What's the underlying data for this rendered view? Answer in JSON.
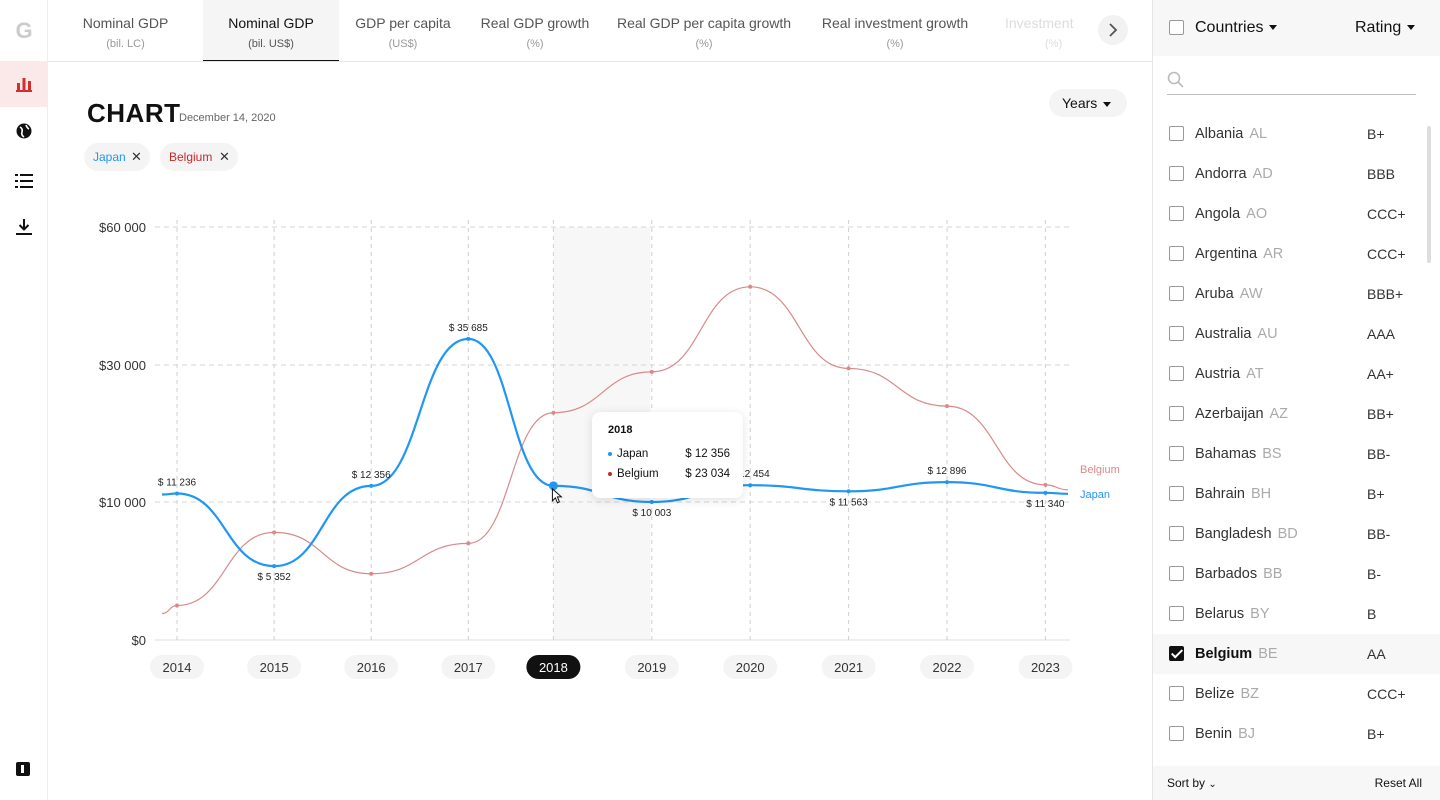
{
  "rail": {
    "logo": "G",
    "items": [
      {
        "icon": "bar-chart-icon",
        "active": true
      },
      {
        "icon": "globe-icon",
        "active": false
      },
      {
        "icon": "list-icon",
        "active": false
      },
      {
        "icon": "download-icon",
        "active": false
      }
    ],
    "bottom_icon": "brand-square-icon"
  },
  "tabs": [
    {
      "label": "Nominal GDP",
      "unit": "(bil. LC)",
      "active": false
    },
    {
      "label": "Nominal GDP",
      "unit": "(bil. US$)",
      "active": true
    },
    {
      "label": "GDP per capita",
      "unit": "(US$)",
      "active": false
    },
    {
      "label": "Real GDP growth",
      "unit": "(%)",
      "active": false
    },
    {
      "label": "Real GDP per capita growth",
      "unit": "(%)",
      "active": false
    },
    {
      "label": "Real investment growth",
      "unit": "(%)",
      "active": false
    },
    {
      "label": "Investment",
      "unit": "(%)",
      "active": false
    }
  ],
  "chart_header": {
    "title": "CHART",
    "date": "December 14, 2020",
    "period_select": "Years"
  },
  "chips": [
    {
      "label": "Japan",
      "color": "#2196f3"
    },
    {
      "label": "Belgium",
      "color": "#c62828"
    }
  ],
  "tooltip": {
    "year": "2018",
    "rows": [
      {
        "country": "Japan",
        "value": "$ 12 356",
        "color": "#2196f3"
      },
      {
        "country": "Belgium",
        "value": "$ 23 034",
        "color": "#c62828"
      }
    ]
  },
  "chart_data": {
    "type": "line",
    "x": [
      "2014",
      "2015",
      "2016",
      "2017",
      "2018",
      "2019",
      "2020",
      "2021",
      "2022",
      "2023"
    ],
    "y_ticks": [
      "$0",
      "$10 000",
      "$30 000",
      "$60 000"
    ],
    "y_tick_values": [
      0,
      10000,
      30000,
      60000
    ],
    "ylim": [
      0,
      60000
    ],
    "highlight_x": "2018",
    "series": [
      {
        "name": "Japan",
        "color": "#2196f3",
        "values": [
          11236,
          5352,
          12356,
          35685,
          12356,
          10003,
          12454,
          11563,
          12896,
          11340
        ],
        "labels": [
          "$ 11 236",
          "$ 5 352",
          "$ 12 356",
          "$ 35 685",
          "",
          "$ 10 003",
          "$ 12 454",
          "$ 11 563",
          "$ 12 896",
          "$ 11 340"
        ]
      },
      {
        "name": "Belgium",
        "color": "#d98a8a",
        "values": [
          2500,
          7800,
          4800,
          7000,
          23034,
          29000,
          47000,
          29500,
          24000,
          12500
        ]
      }
    ]
  },
  "panel": {
    "countries_label": "Countries",
    "rating_label": "Rating",
    "search_placeholder": "",
    "countries": [
      {
        "name": "Albania",
        "code": "AL",
        "rating": "B+",
        "checked": false
      },
      {
        "name": "Andorra",
        "code": "AD",
        "rating": "BBB",
        "checked": false
      },
      {
        "name": "Angola",
        "code": "AO",
        "rating": "CCC+",
        "checked": false
      },
      {
        "name": "Argentina",
        "code": "AR",
        "rating": "CCC+",
        "checked": false
      },
      {
        "name": "Aruba",
        "code": "AW",
        "rating": "BBB+",
        "checked": false
      },
      {
        "name": "Australia",
        "code": "AU",
        "rating": "AAA",
        "checked": false
      },
      {
        "name": "Austria",
        "code": "AT",
        "rating": "AA+",
        "checked": false
      },
      {
        "name": "Azerbaijan",
        "code": "AZ",
        "rating": "BB+",
        "checked": false
      },
      {
        "name": "Bahamas",
        "code": "BS",
        "rating": "BB-",
        "checked": false
      },
      {
        "name": "Bahrain",
        "code": "BH",
        "rating": "B+",
        "checked": false
      },
      {
        "name": "Bangladesh",
        "code": "BD",
        "rating": "BB-",
        "checked": false
      },
      {
        "name": "Barbados",
        "code": "BB",
        "rating": "B-",
        "checked": false
      },
      {
        "name": "Belarus",
        "code": "BY",
        "rating": "B",
        "checked": false
      },
      {
        "name": "Belgium",
        "code": "BE",
        "rating": "AA",
        "checked": true
      },
      {
        "name": "Belize",
        "code": "BZ",
        "rating": "CCC+",
        "checked": false
      },
      {
        "name": "Benin",
        "code": "BJ",
        "rating": "B+",
        "checked": false
      }
    ],
    "sort_label": "Sort by",
    "reset_label": "Reset All"
  }
}
